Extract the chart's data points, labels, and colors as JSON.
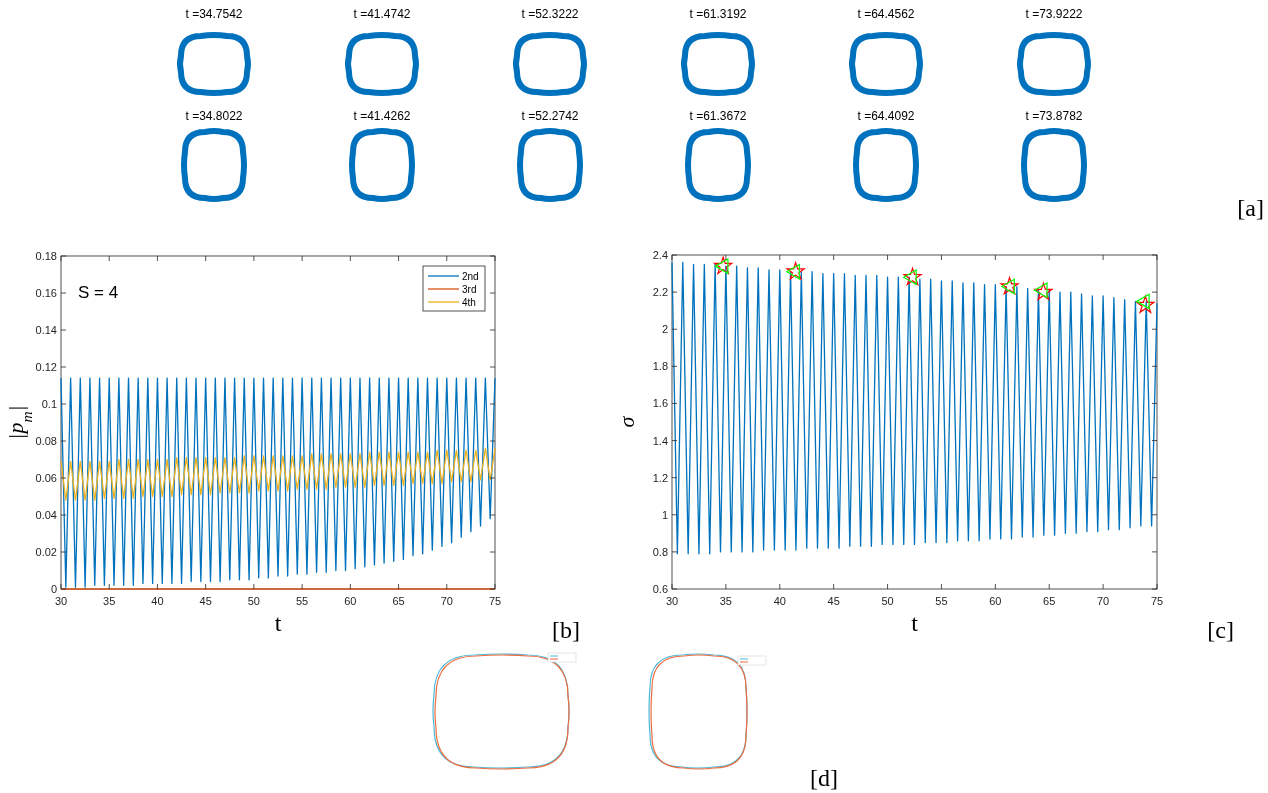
{
  "chart_data": [
    {
      "type": "other",
      "annotations": [
        "t =34.7542",
        "t =41.4742",
        "t =52.3222",
        "t =61.3192",
        "t =64.4562",
        "t =73.9222",
        "t =34.8022",
        "t =41.4262",
        "t =52.2742",
        "t =61.3672",
        "t =64.4092",
        "t =73.8782",
        "[a]"
      ]
    },
    {
      "type": "line",
      "xlabel": "t",
      "ylabel": "|p$_{m}$|",
      "annotations": [
        "S  = 4",
        "[b]"
      ],
      "legend": "top right",
      "xlim": [
        30,
        75
      ],
      "ylim": [
        0,
        0.18
      ],
      "xticks": [
        30,
        35,
        40,
        45,
        50,
        55,
        60,
        65,
        70,
        75
      ],
      "yticks": [
        0,
        0.02,
        0.04,
        0.06,
        0.08,
        0.1,
        0.12,
        0.14,
        0.16,
        0.18
      ],
      "x": [
        30,
        30.5,
        31,
        31.5,
        32,
        32.5,
        33,
        33.5,
        34,
        34.5,
        35,
        35.5,
        36,
        36.5,
        37,
        37.5,
        38,
        38.5,
        39,
        39.5,
        40,
        40.5,
        41,
        41.5,
        42,
        42.5,
        43,
        43.5,
        44,
        44.5,
        45,
        45.5,
        46,
        46.5,
        47,
        47.5,
        48,
        48.5,
        49,
        49.5,
        50,
        50.5,
        51,
        51.5,
        52,
        52.5,
        53,
        53.5,
        54,
        54.5,
        55,
        55.5,
        56,
        56.5,
        57,
        57.5,
        58,
        58.5,
        59,
        59.5,
        60,
        60.5,
        61,
        61.5,
        62,
        62.5,
        63,
        63.5,
        64,
        64.5,
        65,
        65.5,
        66,
        66.5,
        67,
        67.5,
        68,
        68.5,
        69,
        69.5,
        70,
        70.5,
        71,
        71.5,
        72,
        72.5,
        73,
        73.5,
        74,
        74.5,
        75
      ],
      "series": [
        {
          "name": "2nd",
          "color": "#0072bd",
          "values": [
            0.114,
            0.001,
            0.114,
            0.001,
            0.114,
            0.001,
            0.114,
            0.002,
            0.114,
            0.002,
            0.114,
            0.002,
            0.114,
            0.002,
            0.114,
            0.002,
            0.114,
            0.003,
            0.114,
            0.003,
            0.114,
            0.003,
            0.114,
            0.003,
            0.114,
            0.003,
            0.114,
            0.004,
            0.114,
            0.004,
            0.114,
            0.004,
            0.114,
            0.004,
            0.114,
            0.005,
            0.114,
            0.005,
            0.114,
            0.005,
            0.114,
            0.006,
            0.114,
            0.006,
            0.114,
            0.007,
            0.114,
            0.007,
            0.114,
            0.008,
            0.114,
            0.008,
            0.114,
            0.009,
            0.114,
            0.009,
            0.114,
            0.01,
            0.114,
            0.01,
            0.114,
            0.011,
            0.114,
            0.012,
            0.114,
            0.013,
            0.114,
            0.014,
            0.114,
            0.015,
            0.114,
            0.016,
            0.114,
            0.018,
            0.114,
            0.019,
            0.114,
            0.021,
            0.114,
            0.023,
            0.114,
            0.025,
            0.114,
            0.028,
            0.114,
            0.031,
            0.114,
            0.034,
            0.114,
            0.038,
            0.114
          ]
        },
        {
          "name": "3rd",
          "color": "#d95319",
          "x": [
            30,
            75
          ],
          "values": [
            0,
            0
          ]
        },
        {
          "name": "4th",
          "color": "#edb120",
          "values": [
            0.069,
            0.048,
            0.069,
            0.048,
            0.069,
            0.048,
            0.069,
            0.048,
            0.069,
            0.049,
            0.069,
            0.049,
            0.07,
            0.049,
            0.07,
            0.049,
            0.07,
            0.05,
            0.07,
            0.05,
            0.07,
            0.05,
            0.07,
            0.05,
            0.071,
            0.051,
            0.071,
            0.051,
            0.071,
            0.051,
            0.071,
            0.051,
            0.071,
            0.052,
            0.071,
            0.052,
            0.071,
            0.052,
            0.072,
            0.052,
            0.072,
            0.053,
            0.072,
            0.053,
            0.072,
            0.053,
            0.072,
            0.053,
            0.072,
            0.054,
            0.072,
            0.054,
            0.073,
            0.054,
            0.073,
            0.054,
            0.073,
            0.055,
            0.073,
            0.055,
            0.073,
            0.055,
            0.073,
            0.055,
            0.074,
            0.056,
            0.074,
            0.056,
            0.074,
            0.056,
            0.074,
            0.056,
            0.074,
            0.057,
            0.074,
            0.057,
            0.074,
            0.057,
            0.075,
            0.057,
            0.075,
            0.058,
            0.075,
            0.058,
            0.075,
            0.058,
            0.075,
            0.059,
            0.076,
            0.059,
            0.076
          ]
        }
      ]
    },
    {
      "type": "line",
      "xlabel": "t",
      "ylabel": "σ",
      "annotations": [
        "[c]"
      ],
      "xlim": [
        30,
        75
      ],
      "ylim": [
        0.6,
        2.4
      ],
      "xticks": [
        30,
        35,
        40,
        45,
        50,
        55,
        60,
        65,
        70,
        75
      ],
      "yticks": [
        0.6,
        0.8,
        1,
        1.2,
        1.4,
        1.6,
        1.8,
        2,
        2.2,
        2.4
      ],
      "x": [
        30,
        30.5,
        31,
        31.5,
        32,
        32.5,
        33,
        33.5,
        34,
        34.5,
        35,
        35.5,
        36,
        36.5,
        37,
        37.5,
        38,
        38.5,
        39,
        39.5,
        40,
        40.5,
        41,
        41.5,
        42,
        42.5,
        43,
        43.5,
        44,
        44.5,
        45,
        45.5,
        46,
        46.5,
        47,
        47.5,
        48,
        48.5,
        49,
        49.5,
        50,
        50.5,
        51,
        51.5,
        52,
        52.5,
        53,
        53.5,
        54,
        54.5,
        55,
        55.5,
        56,
        56.5,
        57,
        57.5,
        58,
        58.5,
        59,
        59.5,
        60,
        60.5,
        61,
        61.5,
        62,
        62.5,
        63,
        63.5,
        64,
        64.5,
        65,
        65.5,
        66,
        66.5,
        67,
        67.5,
        68,
        68.5,
        69,
        69.5,
        70,
        70.5,
        71,
        71.5,
        72,
        72.5,
        73,
        73.5,
        74,
        74.5,
        75
      ],
      "series": [
        {
          "color": "#0072bd",
          "values": [
            2.36,
            0.79,
            2.36,
            0.79,
            2.35,
            0.79,
            2.35,
            0.79,
            2.35,
            0.8,
            2.34,
            0.8,
            2.34,
            0.8,
            2.33,
            0.8,
            2.33,
            0.81,
            2.32,
            0.81,
            2.32,
            0.81,
            2.31,
            0.81,
            2.31,
            0.82,
            2.31,
            0.82,
            2.3,
            0.82,
            2.3,
            0.82,
            2.3,
            0.83,
            2.29,
            0.83,
            2.29,
            0.83,
            2.29,
            0.84,
            2.28,
            0.84,
            2.28,
            0.84,
            2.28,
            0.84,
            2.27,
            0.85,
            2.27,
            0.85,
            2.26,
            0.85,
            2.26,
            0.86,
            2.25,
            0.86,
            2.25,
            0.86,
            2.24,
            0.87,
            2.24,
            0.87,
            2.23,
            0.87,
            2.23,
            0.88,
            2.22,
            0.88,
            2.21,
            0.89,
            2.21,
            0.89,
            2.2,
            0.9,
            2.2,
            0.9,
            2.19,
            0.91,
            2.18,
            0.91,
            2.18,
            0.92,
            2.17,
            0.92,
            2.16,
            0.93,
            2.15,
            0.94,
            2.15,
            0.94,
            2.14
          ]
        },
        {
          "type": "scatter",
          "color": "#ff0000",
          "marker": "star",
          "x": [
            34.75,
            41.47,
            52.32,
            61.32,
            64.46,
            73.92
          ],
          "values": [
            2.34,
            2.31,
            2.28,
            2.23,
            2.2,
            2.13
          ]
        },
        {
          "type": "scatter",
          "color": "#00ff00",
          "marker": "triangle",
          "x": [
            34.8,
            41.43,
            52.27,
            61.37,
            64.41,
            73.88
          ],
          "values": [
            2.34,
            2.31,
            2.28,
            2.23,
            2.21,
            2.15
          ]
        }
      ]
    },
    {
      "type": "other",
      "annotations": [
        "[d]"
      ]
    }
  ]
}
